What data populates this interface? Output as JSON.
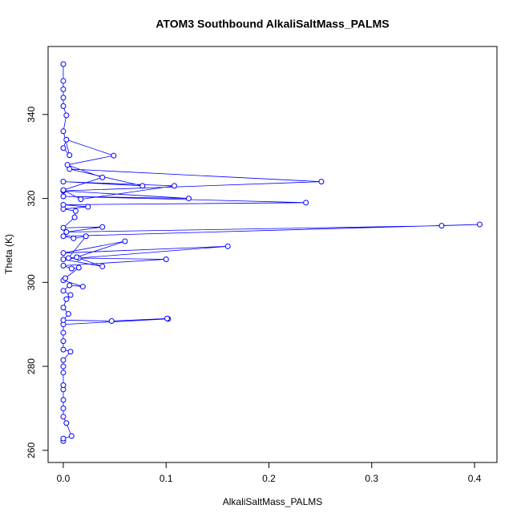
{
  "chart_data": {
    "type": "line",
    "title": "ATOM3 Southbound AlkaliSaltMass_PALMS",
    "x_label": "AlkaliSaltMass_PALMS",
    "y_label": "Theta (K)",
    "color": "#0000ff",
    "markers": true,
    "grid": false,
    "xlim": [
      -0.0148,
      0.4218
    ],
    "ylim": [
      257.1,
      356.2
    ],
    "xticks": [
      {
        "value": 0,
        "label": "0.0"
      },
      0.1,
      0.2,
      0.3,
      0.4
    ],
    "yticks": [
      260,
      280,
      300,
      320,
      340
    ],
    "x": [
      0,
      0,
      0.008,
      0.003,
      0,
      0,
      0,
      0,
      0,
      0,
      0,
      0,
      0.007,
      0,
      0,
      0,
      0,
      0.102,
      0.101,
      0.047,
      0,
      0.005,
      0,
      0.003,
      0.007,
      0,
      0.006,
      0.019,
      0,
      0.002,
      0.015,
      0.008,
      0,
      0.1,
      0.015,
      0.038,
      0,
      0.16,
      0,
      0.06,
      0.013,
      0.005,
      0.022,
      0.01,
      0,
      0.405,
      0.368,
      0.003,
      0.038,
      0,
      0.011,
      0.012,
      0,
      0.024,
      0,
      0.236,
      0,
      0.122,
      0,
      0.251,
      0.006,
      0.077,
      0,
      0.108,
      0.017,
      0,
      0.038,
      0.004,
      0.049,
      0.003,
      0,
      0.006,
      0,
      0.003,
      0,
      0,
      0,
      0,
      0
    ],
    "values": [
      262.2,
      262.8,
      263.4,
      266.5,
      268,
      270,
      272,
      274.5,
      275.5,
      278.5,
      280,
      281.5,
      283.5,
      284,
      286,
      288,
      290,
      291.3,
      291.4,
      290.8,
      291,
      292.5,
      294,
      296,
      297,
      298,
      299.3,
      299,
      300.5,
      301,
      303.5,
      303.3,
      304,
      305.5,
      305.8,
      303.8,
      305.5,
      308.6,
      307,
      309.8,
      306,
      305.8,
      311,
      310.5,
      311,
      313.8,
      313.5,
      312,
      313.2,
      313,
      315.5,
      317,
      317.5,
      318,
      318.5,
      319,
      320.5,
      320,
      321.8,
      324,
      327,
      323,
      324,
      323,
      319.8,
      322,
      325,
      328,
      330.2,
      334,
      332,
      330.3,
      336,
      339.8,
      342,
      344,
      346,
      348,
      352
    ]
  }
}
